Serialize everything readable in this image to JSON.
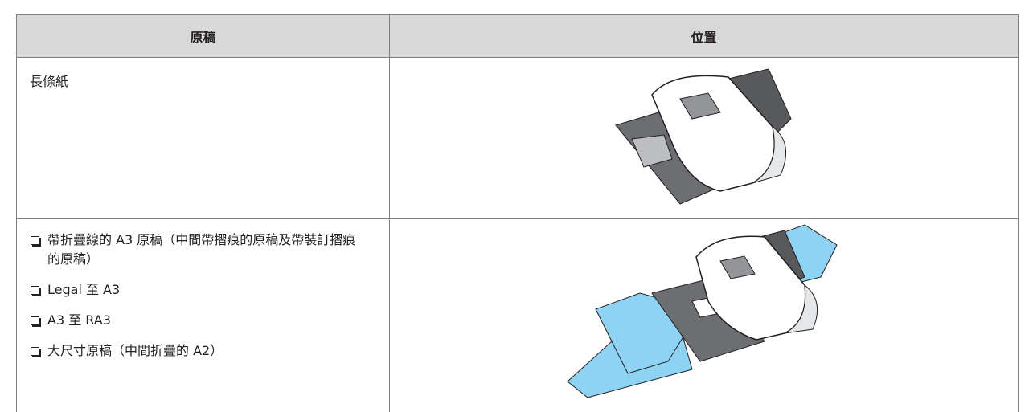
{
  "table": {
    "headers": [
      "原稿",
      "位置"
    ],
    "rows": [
      [
        "長條紙"
      ],
      [
        [
          "帶折疊線的 A3 原稿（中間帶摺痕的原稿及帶裝訂摺痕的原稿）",
          "Legal 至 A3",
          "A3 至 RA3",
          "大尺寸原稿（中間折疊的 A2）"
        ]
      ]
    ]
  }
}
